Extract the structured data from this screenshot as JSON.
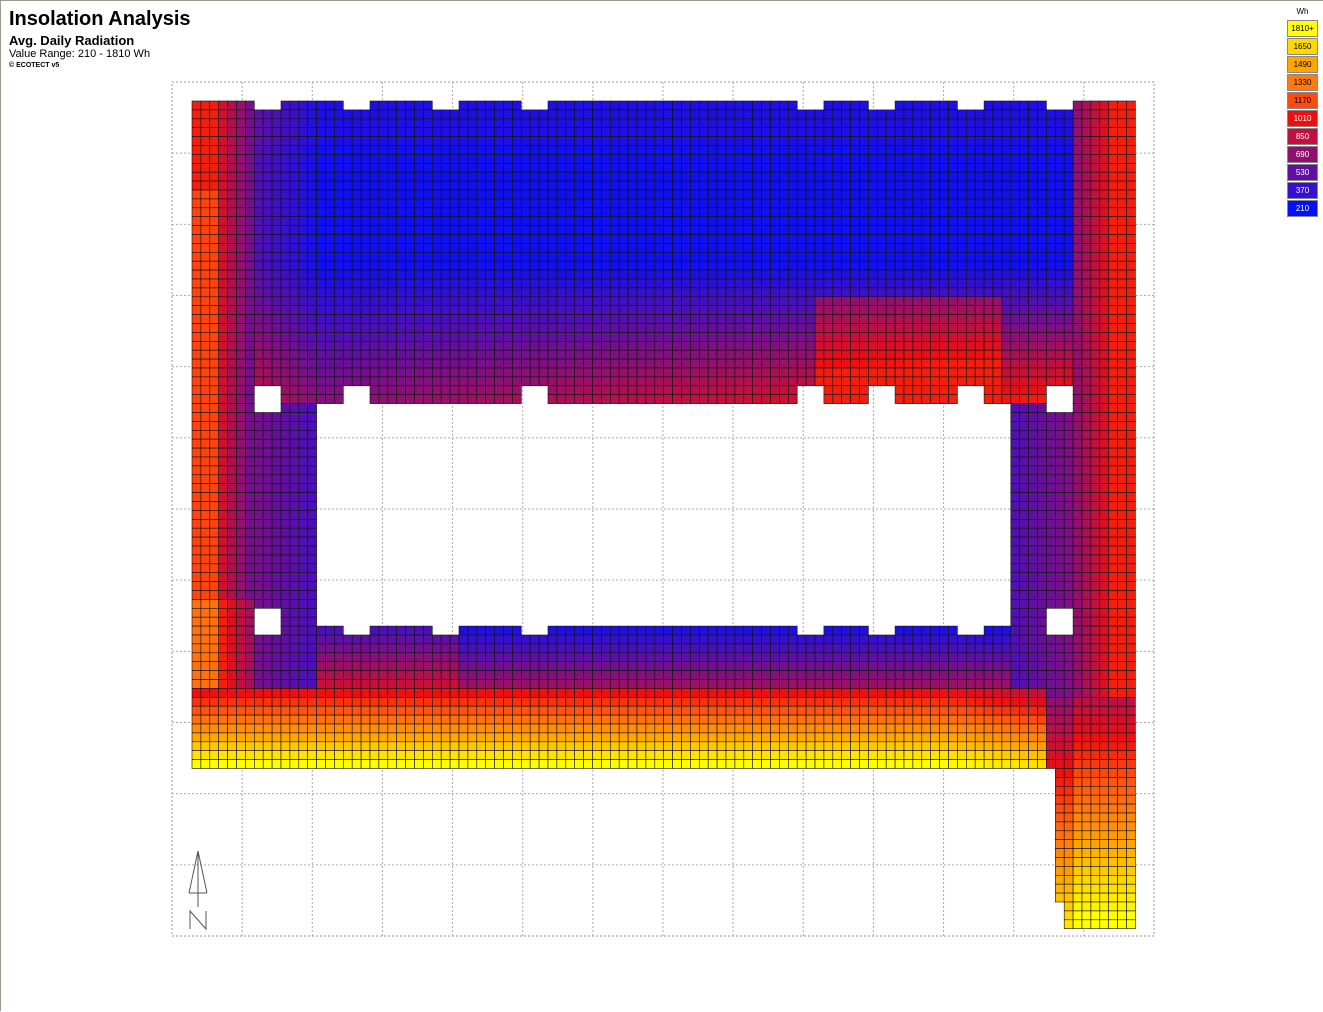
{
  "header": {
    "title": "Insolation Analysis",
    "subtitle": "Avg. Daily Radiation",
    "value_range": "Value Range: 210 - 1810 Wh",
    "copyright": "© ECOTECT v5"
  },
  "legend": {
    "unit": "Wh",
    "entries": [
      {
        "label": "1810+",
        "color": "#ffff00",
        "text_color": "#000000"
      },
      {
        "label": "1650",
        "color": "#ffd800",
        "text_color": "#000000"
      },
      {
        "label": "1490",
        "color": "#ffa500",
        "text_color": "#000000"
      },
      {
        "label": "1330",
        "color": "#ff7a10",
        "text_color": "#000000"
      },
      {
        "label": "1170",
        "color": "#ff4a10",
        "text_color": "#000000"
      },
      {
        "label": "1010",
        "color": "#ee1010",
        "text_color": "#ffffff"
      },
      {
        "label": "850",
        "color": "#c01040",
        "text_color": "#ffffff"
      },
      {
        "label": "690",
        "color": "#901070",
        "text_color": "#ffffff"
      },
      {
        "label": "530",
        "color": "#6010a0",
        "text_color": "#ffffff"
      },
      {
        "label": "370",
        "color": "#3510d0",
        "text_color": "#ffffff"
      },
      {
        "label": "210",
        "color": "#0010ff",
        "text_color": "#ffffff"
      }
    ]
  },
  "chart_data": {
    "type": "heatmap",
    "title": "Insolation Analysis",
    "subtitle": "Avg. Daily Radiation",
    "unit": "Wh",
    "value_range": [
      210,
      1810
    ],
    "grid": true,
    "legend_position": "top-right",
    "north_arrow": "N",
    "color_scale": [
      {
        "value": 210,
        "color": "#0010ff"
      },
      {
        "value": 370,
        "color": "#3510d0"
      },
      {
        "value": 530,
        "color": "#6010a0"
      },
      {
        "value": 690,
        "color": "#901070"
      },
      {
        "value": 850,
        "color": "#c01040"
      },
      {
        "value": 1010,
        "color": "#ee1010"
      },
      {
        "value": 1170,
        "color": "#ff4a10"
      },
      {
        "value": 1330,
        "color": "#ff7a10"
      },
      {
        "value": 1490,
        "color": "#ffa500"
      },
      {
        "value": 1650,
        "color": "#ffd800"
      },
      {
        "value": 1810,
        "color": "#ffff00"
      }
    ]
  }
}
